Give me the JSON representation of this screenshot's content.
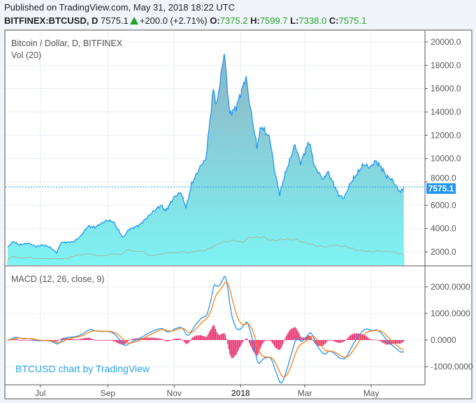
{
  "header": {
    "published": "Published on TradingView.com, May 31, 2018 18:22 UTC",
    "symbol": "BITFINEX:BTCUSD, D",
    "last": "7575.1",
    "change": "+200.0 (+2.71%)",
    "o_label": "O:",
    "o": "7375.2",
    "h_label": "H:",
    "h": "7599.7",
    "l_label": "L:",
    "l": "7338.0",
    "c_label": "C:",
    "c": "7575.1"
  },
  "colors": {
    "price_line": "#2196f3",
    "fill_top": "#8fb3c4",
    "fill_bottom": "#7ef4f4",
    "macd": "#2196f3",
    "signal": "#ff7f0e",
    "hist": "#e91e63",
    "up": "#1fa32b",
    "watermark": "#2aa6e8"
  },
  "chart_data": [
    {
      "type": "area",
      "title": "Bitcoin / Dollar, D, BITFINEX",
      "volume_label": "Vol (20)",
      "ylim": [
        800,
        20800
      ],
      "yticks": [
        "2000.0",
        "4000.0",
        "6000.0",
        "8000.0",
        "10000.0",
        "12000.0",
        "14000.0",
        "16000.0",
        "18000.0",
        "20000.0"
      ],
      "last_price_label": "7575.1",
      "x_ticks": [
        "Jul",
        "Sep",
        "Nov",
        "2018",
        "Mar",
        "May"
      ],
      "price_points": [
        [
          "2017-06-01",
          2400
        ],
        [
          "2017-06-06",
          2900
        ],
        [
          "2017-06-12",
          2600
        ],
        [
          "2017-06-20",
          2750
        ],
        [
          "2017-06-27",
          2450
        ],
        [
          "2017-07-03",
          2600
        ],
        [
          "2017-07-10",
          2400
        ],
        [
          "2017-07-16",
          1900
        ],
        [
          "2017-07-20",
          2800
        ],
        [
          "2017-07-31",
          2850
        ],
        [
          "2017-08-06",
          3250
        ],
        [
          "2017-08-14",
          4200
        ],
        [
          "2017-08-20",
          4100
        ],
        [
          "2017-08-31",
          4700
        ],
        [
          "2017-09-06",
          4600
        ],
        [
          "2017-09-15",
          3200
        ],
        [
          "2017-09-20",
          3900
        ],
        [
          "2017-09-30",
          4300
        ],
        [
          "2017-10-12",
          5400
        ],
        [
          "2017-10-20",
          6000
        ],
        [
          "2017-10-24",
          5500
        ],
        [
          "2017-11-01",
          6700
        ],
        [
          "2017-11-07",
          7100
        ],
        [
          "2017-11-12",
          5800
        ],
        [
          "2017-11-17",
          7800
        ],
        [
          "2017-11-26",
          9500
        ],
        [
          "2017-11-30",
          9900
        ],
        [
          "2017-12-07",
          16000
        ],
        [
          "2017-12-10",
          14500
        ],
        [
          "2017-12-17",
          19100
        ],
        [
          "2017-12-22",
          13800
        ],
        [
          "2017-12-28",
          14400
        ],
        [
          "2018-01-06",
          17000
        ],
        [
          "2018-01-09",
          14900
        ],
        [
          "2018-01-16",
          11000
        ],
        [
          "2018-01-20",
          12800
        ],
        [
          "2018-01-28",
          11700
        ],
        [
          "2018-02-01",
          9100
        ],
        [
          "2018-02-06",
          6900
        ],
        [
          "2018-02-10",
          8400
        ],
        [
          "2018-02-20",
          11200
        ],
        [
          "2018-02-25",
          9600
        ],
        [
          "2018-03-05",
          11500
        ],
        [
          "2018-03-10",
          9300
        ],
        [
          "2018-03-18",
          8200
        ],
        [
          "2018-03-22",
          8900
        ],
        [
          "2018-04-01",
          6900
        ],
        [
          "2018-04-06",
          6600
        ],
        [
          "2018-04-12",
          7900
        ],
        [
          "2018-04-24",
          9500
        ],
        [
          "2018-04-30",
          9250
        ],
        [
          "2018-05-05",
          9800
        ],
        [
          "2018-05-10",
          9300
        ],
        [
          "2018-05-15",
          8500
        ],
        [
          "2018-05-20",
          8200
        ],
        [
          "2018-05-28",
          7100
        ],
        [
          "2018-05-31",
          7575
        ]
      ],
      "volume_relative": [
        3,
        2,
        3,
        2,
        2,
        3,
        2,
        2,
        6,
        3,
        3,
        4,
        3,
        5,
        3,
        8,
        3,
        3,
        4,
        4,
        5,
        4,
        5,
        4,
        6,
        5,
        8,
        10,
        7,
        9,
        8,
        12,
        9,
        8,
        9,
        10,
        8,
        9,
        7,
        6,
        7,
        6,
        8,
        6,
        5,
        5,
        5,
        4,
        6,
        4,
        4,
        3,
        5,
        3
      ]
    },
    {
      "type": "line",
      "title": "MACD (12, 26, close, 9)",
      "ylim": [
        -1700,
        2800
      ],
      "yticks": [
        "-1000.0000",
        "0.0000",
        "1000.0000",
        "2000.0000"
      ],
      "series": [
        "MACD",
        "Signal",
        "Histogram"
      ],
      "fast": 12,
      "slow": 26,
      "signal": 9
    }
  ],
  "watermark": "BTCUSD chart by TradingView"
}
